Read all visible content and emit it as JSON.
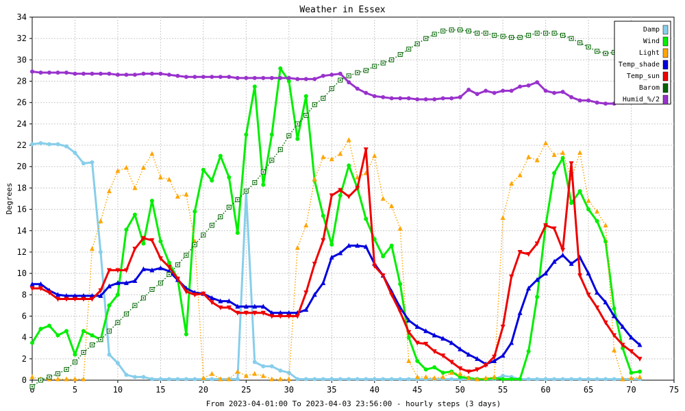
{
  "chart_data": {
    "type": "line",
    "title": "Weather in Essex",
    "ylabel": "Degrees",
    "xlabel": "From 2023-04-01:00 To 2023-04-03 23:56:00 - hourly steps (3 days)",
    "xlim": [
      0,
      75
    ],
    "ylim": [
      0,
      34
    ],
    "x_ticks": [
      0,
      5,
      10,
      15,
      20,
      25,
      30,
      35,
      40,
      45,
      50,
      55,
      60,
      65,
      70,
      75
    ],
    "y_ticks": [
      0,
      2,
      4,
      6,
      8,
      10,
      12,
      14,
      16,
      18,
      20,
      22,
      24,
      26,
      28,
      30,
      32,
      34
    ],
    "grid": true,
    "legend_position": "top-right",
    "x": [
      0,
      1,
      2,
      3,
      4,
      5,
      6,
      7,
      8,
      9,
      10,
      11,
      12,
      13,
      14,
      15,
      16,
      17,
      18,
      19,
      20,
      21,
      22,
      23,
      24,
      25,
      26,
      27,
      28,
      29,
      30,
      31,
      32,
      33,
      34,
      35,
      36,
      37,
      38,
      39,
      40,
      41,
      42,
      43,
      44,
      45,
      46,
      47,
      48,
      49,
      50,
      51,
      52,
      53,
      54,
      55,
      56,
      57,
      58,
      59,
      60,
      61,
      62,
      63,
      64,
      65,
      66,
      67,
      68,
      69,
      70,
      71
    ],
    "series": [
      {
        "name": "Damp",
        "color": "#87ceeb",
        "style": "solid",
        "marker": "dot",
        "values": [
          22.1,
          22.2,
          22.1,
          22.1,
          21.9,
          21.3,
          20.3,
          20.4,
          12.0,
          2.4,
          1.6,
          0.5,
          0.3,
          0.3,
          0.1,
          0.1,
          0.1,
          0.1,
          0.1,
          0.1,
          0.1,
          0.1,
          0.1,
          0.1,
          0.1,
          17.6,
          1.7,
          1.3,
          1.3,
          0.9,
          0.7,
          0.1,
          0.1,
          0.1,
          0.1,
          0.1,
          0.1,
          0.1,
          0.1,
          0.1,
          0.1,
          0.1,
          0.1,
          0.1,
          0.1,
          0.1,
          0.1,
          0.1,
          0.1,
          0.1,
          0.1,
          0.1,
          0.1,
          0.1,
          0.1,
          0.4,
          0.3,
          0.1,
          0.1,
          0.1,
          0.1,
          0.1,
          0.1,
          0.1,
          0.1,
          0.1,
          0.1,
          0.1,
          0.1,
          0.1,
          0.1,
          0.1
        ]
      },
      {
        "name": "Wind",
        "color": "#00ee00",
        "style": "solid",
        "marker": "dot",
        "values": [
          3.5,
          4.8,
          5.1,
          4.2,
          4.6,
          2.4,
          4.6,
          4.2,
          3.8,
          7.0,
          8.0,
          14.1,
          15.5,
          12.8,
          16.8,
          13.0,
          11.0,
          9.5,
          4.3,
          15.8,
          19.7,
          18.7,
          21.0,
          19.0,
          13.8,
          23.0,
          27.5,
          18.3,
          23.0,
          29.2,
          28.0,
          22.6,
          26.6,
          18.7,
          15.4,
          12.7,
          17.3,
          20.1,
          18.0,
          15.1,
          13.2,
          11.6,
          12.6,
          9.0,
          4.0,
          1.8,
          1.0,
          1.2,
          0.7,
          0.8,
          0.3,
          0.2,
          0.1,
          0.1,
          0.2,
          0.1,
          0.1,
          0.1,
          2.7,
          7.8,
          14.5,
          19.4,
          20.8,
          16.6,
          17.7,
          16.0,
          14.9,
          13.0,
          6.7,
          3.0,
          0.7,
          0.8
        ]
      },
      {
        "name": "Light",
        "color": "#ffa500",
        "style": "dotted",
        "marker": "triangle",
        "values": [
          0.3,
          0.1,
          0.1,
          0.1,
          0.1,
          0.1,
          0.1,
          12.3,
          14.9,
          17.7,
          19.6,
          19.9,
          18.0,
          19.9,
          21.2,
          19.0,
          18.8,
          17.2,
          17.4,
          13.0,
          0.2,
          0.6,
          0.1,
          0.1,
          0.8,
          0.4,
          0.6,
          0.4,
          0.1,
          0.1,
          0.1,
          12.4,
          14.5,
          18.8,
          20.9,
          20.7,
          21.2,
          22.5,
          19.0,
          19.4,
          21.0,
          17.0,
          16.3,
          14.2,
          1.8,
          0.3,
          0.3,
          0.2,
          0.3,
          0.7,
          0.6,
          0.2,
          0.1,
          0.2,
          0.3,
          15.2,
          18.4,
          19.2,
          20.9,
          20.6,
          22.2,
          21.1,
          21.3,
          18.9,
          21.3,
          16.8,
          15.8,
          14.5,
          2.8,
          0.1,
          0.2,
          0.3
        ]
      },
      {
        "name": "Temp_shade",
        "color": "#0000dd",
        "style": "solid",
        "marker": "triangle",
        "values": [
          9.0,
          9.0,
          8.4,
          8.0,
          7.9,
          7.9,
          7.9,
          7.9,
          7.9,
          8.8,
          9.1,
          9.1,
          9.3,
          10.4,
          10.3,
          10.5,
          10.2,
          9.4,
          8.6,
          8.2,
          8.1,
          7.7,
          7.4,
          7.4,
          6.9,
          6.9,
          6.9,
          6.9,
          6.3,
          6.3,
          6.3,
          6.3,
          6.6,
          8.0,
          9.1,
          11.5,
          11.9,
          12.6,
          12.6,
          12.5,
          10.9,
          9.8,
          8.3,
          6.8,
          5.6,
          5.0,
          4.6,
          4.2,
          3.9,
          3.5,
          2.9,
          2.4,
          2.0,
          1.5,
          1.8,
          2.3,
          3.5,
          6.3,
          8.6,
          9.4,
          10.0,
          11.1,
          11.7,
          10.9,
          11.5,
          10.0,
          8.2,
          7.3,
          6.0,
          5.0,
          4.0,
          3.3
        ]
      },
      {
        "name": "Temp_sun",
        "color": "#ee0000",
        "style": "solid",
        "marker": "triangle-down",
        "values": [
          8.6,
          8.6,
          8.2,
          7.6,
          7.6,
          7.6,
          7.6,
          7.6,
          8.4,
          10.3,
          10.3,
          10.3,
          12.3,
          13.3,
          13.1,
          11.4,
          10.6,
          9.5,
          8.3,
          8.0,
          8.1,
          7.3,
          6.8,
          6.8,
          6.3,
          6.3,
          6.3,
          6.3,
          6.0,
          6.0,
          6.0,
          6.0,
          8.2,
          10.9,
          13.1,
          17.3,
          17.8,
          17.2,
          18.0,
          21.6,
          10.7,
          9.8,
          8.0,
          6.4,
          4.5,
          3.5,
          3.4,
          2.7,
          2.3,
          1.7,
          1.1,
          0.8,
          1.0,
          1.4,
          2.2,
          5.0,
          9.7,
          12.0,
          11.8,
          12.8,
          14.5,
          14.2,
          12.2,
          20.3,
          9.8,
          8.0,
          6.8,
          5.4,
          4.2,
          3.3,
          2.7,
          2.0
        ]
      },
      {
        "name": "Barom",
        "color": "#006400",
        "style": "dotted",
        "marker": "square",
        "values": [
          -0.6,
          0.0,
          0.3,
          0.6,
          1.0,
          1.7,
          2.6,
          3.3,
          3.8,
          4.6,
          5.4,
          6.2,
          7.0,
          7.7,
          8.5,
          9.1,
          9.9,
          10.8,
          11.7,
          12.7,
          13.6,
          14.5,
          15.3,
          16.2,
          16.9,
          17.7,
          18.5,
          19.5,
          20.6,
          21.6,
          22.9,
          24.0,
          24.8,
          25.8,
          26.4,
          27.3,
          28.1,
          28.5,
          28.8,
          29.0,
          29.4,
          29.7,
          30.0,
          30.5,
          31.0,
          31.5,
          32.0,
          32.4,
          32.7,
          32.8,
          32.8,
          32.7,
          32.5,
          32.5,
          32.3,
          32.2,
          32.1,
          32.1,
          32.3,
          32.5,
          32.5,
          32.5,
          32.3,
          32.0,
          31.6,
          31.2,
          30.8,
          30.6,
          30.7,
          30.8,
          31.0,
          31.0
        ]
      },
      {
        "name": "Humid_%/2",
        "color": "#9932cc",
        "style": "solid",
        "marker": "dot",
        "values": [
          28.9,
          28.8,
          28.8,
          28.8,
          28.8,
          28.7,
          28.7,
          28.7,
          28.7,
          28.7,
          28.6,
          28.6,
          28.6,
          28.7,
          28.7,
          28.7,
          28.6,
          28.5,
          28.4,
          28.4,
          28.4,
          28.4,
          28.4,
          28.4,
          28.3,
          28.3,
          28.3,
          28.3,
          28.3,
          28.3,
          28.3,
          28.2,
          28.2,
          28.2,
          28.5,
          28.6,
          28.7,
          27.9,
          27.3,
          26.9,
          26.6,
          26.5,
          26.4,
          26.4,
          26.4,
          26.3,
          26.3,
          26.3,
          26.4,
          26.4,
          26.5,
          27.2,
          26.8,
          27.1,
          26.9,
          27.1,
          27.1,
          27.5,
          27.6,
          27.9,
          27.1,
          26.9,
          27.0,
          26.5,
          26.2,
          26.2,
          26.0,
          25.9,
          25.9,
          26.0,
          26.0,
          26.1
        ]
      }
    ]
  }
}
